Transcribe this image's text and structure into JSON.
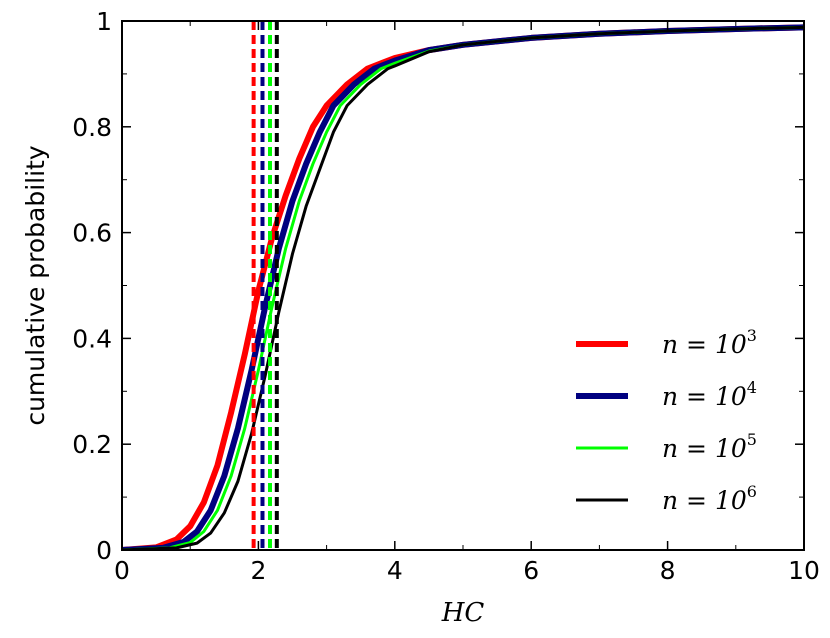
{
  "chart_data": {
    "type": "line",
    "title": "",
    "xlabel": "HC",
    "ylabel": "cumulative probability",
    "xlim": [
      0,
      10
    ],
    "ylim": [
      0,
      1
    ],
    "xticks": [
      "0",
      "2",
      "4",
      "6",
      "8",
      "10"
    ],
    "yticks": [
      "0",
      "0.2",
      "0.4",
      "0.6",
      "0.8",
      "1"
    ],
    "grid": false,
    "legend_position": "bottom-right",
    "series": [
      {
        "name": "n = 10^3",
        "label_base": "n = 10",
        "label_exp": "3",
        "color": "#ff0000",
        "line_width": 6,
        "median_marker_x": 1.93,
        "x": [
          0,
          0.5,
          0.8,
          1.0,
          1.2,
          1.4,
          1.6,
          1.8,
          2.0,
          2.2,
          2.4,
          2.6,
          2.8,
          3.0,
          3.3,
          3.6,
          4.0,
          4.5,
          5.0,
          6.0,
          7.0,
          8.0,
          9.0,
          10.0
        ],
        "y": [
          0.0,
          0.005,
          0.02,
          0.045,
          0.09,
          0.16,
          0.26,
          0.37,
          0.49,
          0.59,
          0.67,
          0.74,
          0.8,
          0.84,
          0.88,
          0.91,
          0.93,
          0.945,
          0.955,
          0.968,
          0.976,
          0.981,
          0.985,
          0.988
        ]
      },
      {
        "name": "n = 10^4",
        "label_base": "n = 10",
        "label_exp": "4",
        "color": "#000080",
        "line_width": 6,
        "median_marker_x": 2.06,
        "x": [
          0,
          0.6,
          0.9,
          1.1,
          1.3,
          1.5,
          1.7,
          1.9,
          2.1,
          2.3,
          2.5,
          2.7,
          2.9,
          3.1,
          3.4,
          3.7,
          4.0,
          4.5,
          5.0,
          6.0,
          7.0,
          8.0,
          9.0,
          10.0
        ],
        "y": [
          0.0,
          0.004,
          0.015,
          0.035,
          0.075,
          0.14,
          0.23,
          0.34,
          0.46,
          0.57,
          0.66,
          0.73,
          0.79,
          0.84,
          0.88,
          0.91,
          0.925,
          0.945,
          0.955,
          0.968,
          0.976,
          0.981,
          0.985,
          0.988
        ]
      },
      {
        "name": "n = 10^5",
        "label_base": "n = 10",
        "label_exp": "5",
        "color": "#00ff00",
        "line_width": 3,
        "median_marker_x": 2.17,
        "x": [
          0,
          0.7,
          1.0,
          1.2,
          1.4,
          1.6,
          1.8,
          2.0,
          2.2,
          2.4,
          2.6,
          2.8,
          3.0,
          3.2,
          3.5,
          3.8,
          4.0,
          4.5,
          5.0,
          6.0,
          7.0,
          8.0,
          9.0,
          10.0
        ],
        "y": [
          0.0,
          0.004,
          0.014,
          0.035,
          0.075,
          0.14,
          0.23,
          0.34,
          0.46,
          0.57,
          0.66,
          0.73,
          0.79,
          0.84,
          0.88,
          0.91,
          0.92,
          0.943,
          0.955,
          0.968,
          0.976,
          0.981,
          0.985,
          0.988
        ]
      },
      {
        "name": "n = 10^6",
        "label_base": "n = 10",
        "label_exp": "6",
        "color": "#000000",
        "line_width": 3,
        "median_marker_x": 2.27,
        "x": [
          0,
          0.8,
          1.1,
          1.3,
          1.5,
          1.7,
          1.9,
          2.1,
          2.3,
          2.5,
          2.7,
          2.9,
          3.1,
          3.3,
          3.6,
          3.9,
          4.0,
          4.5,
          5.0,
          6.0,
          7.0,
          8.0,
          9.0,
          10.0
        ],
        "y": [
          0.0,
          0.004,
          0.013,
          0.032,
          0.07,
          0.13,
          0.22,
          0.33,
          0.45,
          0.56,
          0.65,
          0.72,
          0.79,
          0.84,
          0.88,
          0.91,
          0.915,
          0.942,
          0.955,
          0.968,
          0.976,
          0.981,
          0.985,
          0.988
        ]
      }
    ]
  }
}
